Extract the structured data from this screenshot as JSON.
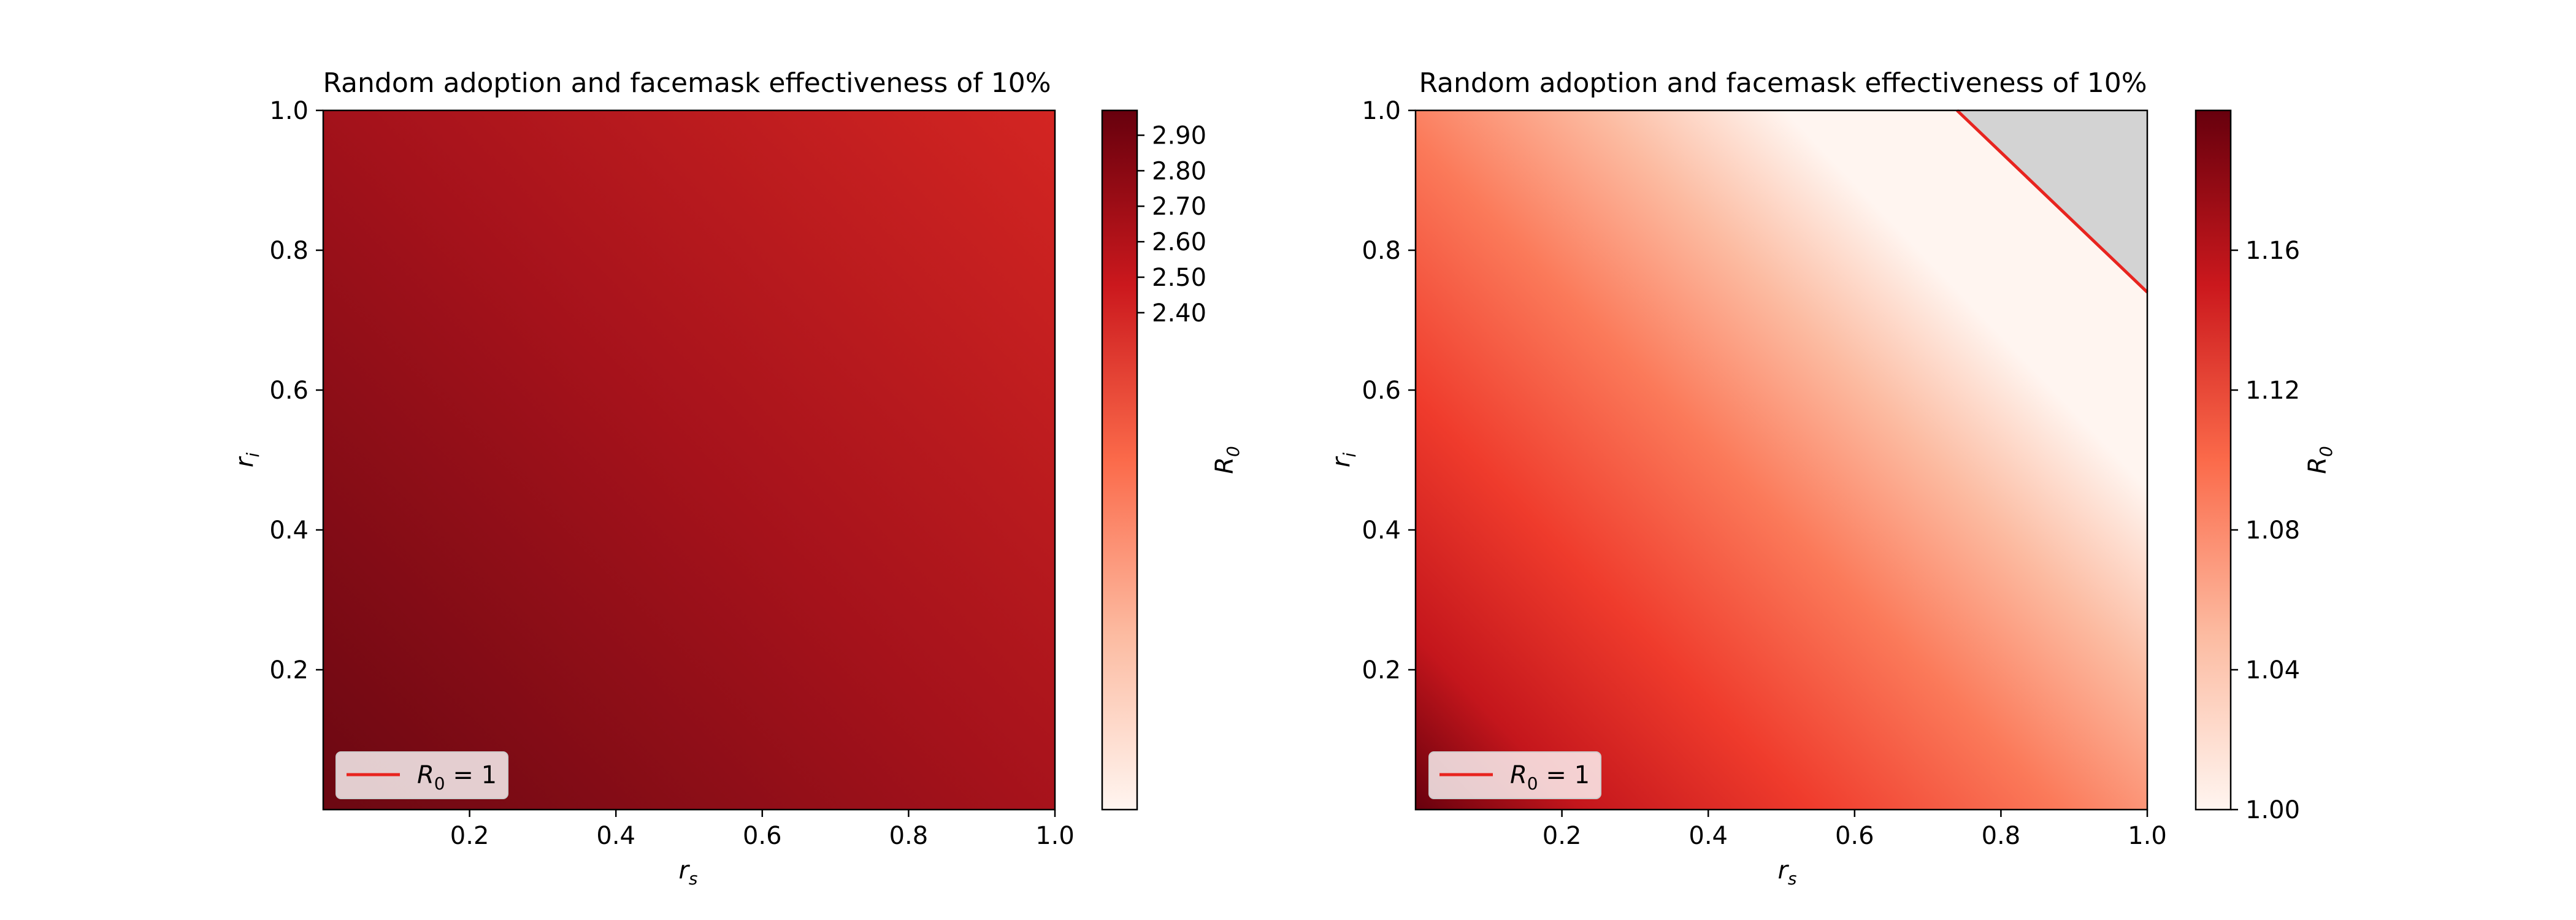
{
  "chart_data": [
    {
      "type": "heatmap",
      "title": "Random adoption and facemask effectiveness of 10%",
      "xlabel": "r",
      "xlabel_sub": "s",
      "ylabel": "r",
      "ylabel_sub": "i",
      "xlim": [
        0.0,
        1.0
      ],
      "ylim": [
        0.0,
        1.0
      ],
      "x_ticks": [
        0.2,
        0.4,
        0.6,
        0.8,
        1.0
      ],
      "x_tick_labels": [
        "0.2",
        "0.4",
        "0.6",
        "0.8",
        "1.0"
      ],
      "y_ticks": [
        0.2,
        0.4,
        0.6,
        0.8,
        1.0
      ],
      "y_tick_labels": [
        "0.2",
        "0.4",
        "0.6",
        "0.8",
        "1.0"
      ],
      "colormap": "Reds",
      "colorbar": {
        "label": "R",
        "label_sub": "0",
        "min": 1.0,
        "max": 2.97,
        "ticks": [
          2.4,
          2.5,
          2.6,
          2.7,
          2.8,
          2.9
        ],
        "tick_labels": [
          "2.40",
          "2.50",
          "2.60",
          "2.70",
          "2.80",
          "2.90"
        ]
      },
      "values": {
        "at_rs0_ri0": 2.97,
        "at_rs1_ri0": 2.67,
        "at_rs0_ri1": 2.67,
        "at_rs1_ri1": 2.4
      },
      "contour": null,
      "legend": {
        "entry_lhs": "R",
        "entry_sub": "0",
        "entry_rhs": " = 1",
        "color": "#e8241f",
        "placement": "lower left"
      }
    },
    {
      "type": "heatmap",
      "title": "Random adoption and facemask effectiveness of 10%",
      "xlabel": "r",
      "xlabel_sub": "s",
      "ylabel": "r",
      "ylabel_sub": "i",
      "xlim": [
        0.0,
        1.0
      ],
      "ylim": [
        0.0,
        1.0
      ],
      "x_ticks": [
        0.2,
        0.4,
        0.6,
        0.8,
        1.0
      ],
      "x_tick_labels": [
        "0.2",
        "0.4",
        "0.6",
        "0.8",
        "1.0"
      ],
      "y_ticks": [
        0.2,
        0.4,
        0.6,
        0.8,
        1.0
      ],
      "y_tick_labels": [
        "0.2",
        "0.4",
        "0.6",
        "0.8",
        "1.0"
      ],
      "colormap": "Reds",
      "colorbar": {
        "label": "R",
        "label_sub": "0",
        "min": 1.0,
        "max": 1.2,
        "ticks": [
          1.0,
          1.04,
          1.08,
          1.12,
          1.16
        ],
        "tick_labels": [
          "1.00",
          "1.04",
          "1.08",
          "1.12",
          "1.16"
        ]
      },
      "values": {
        "at_rs0_ri0": 1.2,
        "at_rs1_ri0": 1.0,
        "at_rs0_ri1": 1.0,
        "at_rs1_ri1": 0.9
      },
      "masked_color": "#d3d3d3",
      "contour": {
        "level": 1.0,
        "from": [
          0.74,
          1.0
        ],
        "to": [
          1.0,
          0.74
        ],
        "color": "#e8241f"
      },
      "legend": {
        "entry_lhs": "R",
        "entry_sub": "0",
        "entry_rhs": " = 1",
        "color": "#e8241f",
        "placement": "lower left"
      }
    }
  ]
}
